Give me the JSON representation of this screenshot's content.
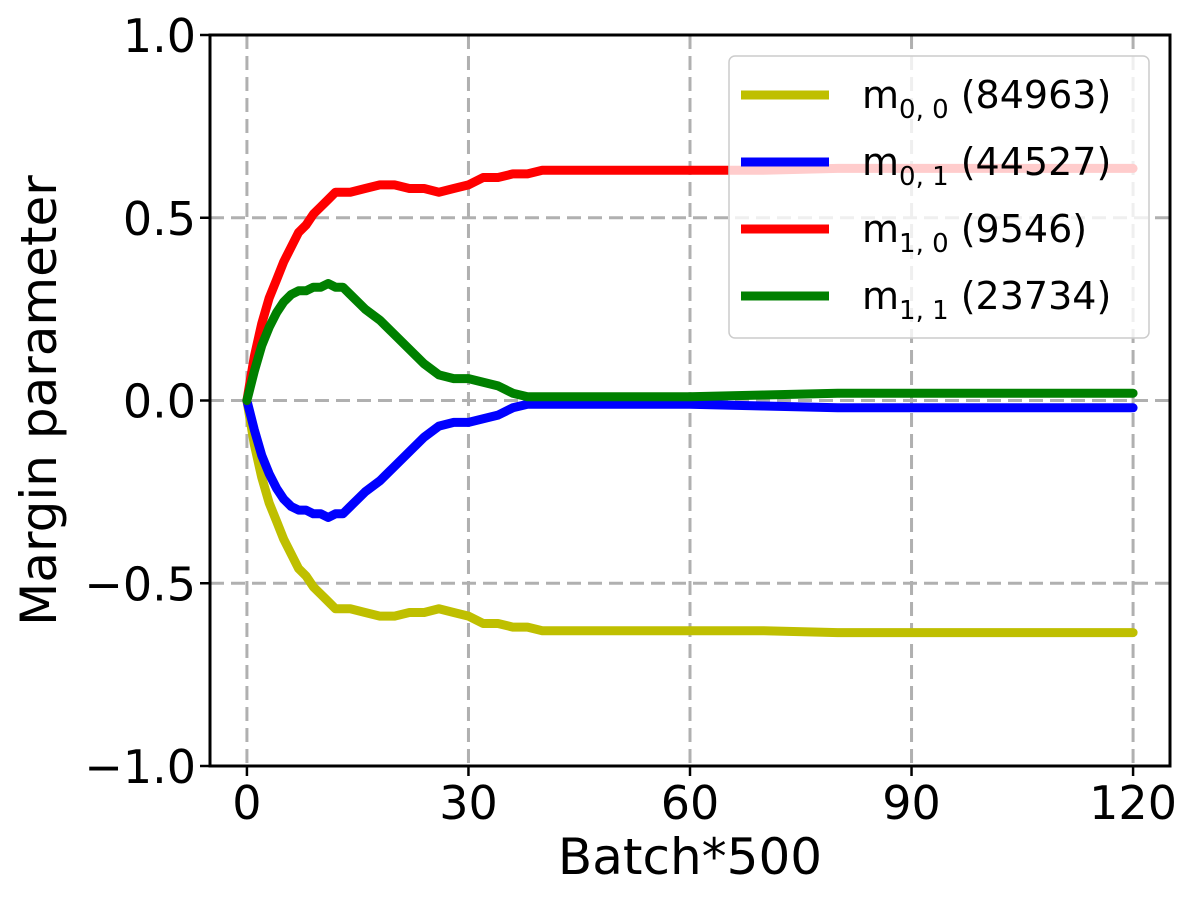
{
  "chart_data": {
    "type": "line",
    "xlabel": "Batch*500",
    "ylabel": "Margin parameter",
    "xlim": [
      -5,
      125
    ],
    "ylim": [
      -1.0,
      1.0
    ],
    "xticks": [
      0,
      30,
      60,
      90,
      120
    ],
    "yticks": [
      -1.0,
      -0.5,
      0.0,
      0.5,
      1.0
    ],
    "xtick_labels": [
      "0",
      "30",
      "60",
      "90",
      "120"
    ],
    "ytick_labels": [
      "−1.0",
      "−0.5",
      "0.0",
      "0.5",
      "1.0"
    ],
    "grid": true,
    "legend_position": "top-right",
    "series": [
      {
        "name": "m0,0 (84963)",
        "label_main": "m",
        "label_sub": "0, 0",
        "label_count": " (84963)",
        "color": "#bfbf00",
        "x": [
          0,
          1,
          2,
          3,
          4,
          5,
          6,
          7,
          8,
          9,
          10,
          11,
          12,
          13,
          14,
          16,
          18,
          20,
          22,
          24,
          26,
          28,
          30,
          32,
          34,
          36,
          38,
          40,
          50,
          60,
          70,
          80,
          90,
          100,
          110,
          120
        ],
        "y": [
          0,
          -0.12,
          -0.21,
          -0.28,
          -0.33,
          -0.38,
          -0.42,
          -0.46,
          -0.48,
          -0.51,
          -0.53,
          -0.55,
          -0.57,
          -0.57,
          -0.57,
          -0.58,
          -0.59,
          -0.59,
          -0.58,
          -0.58,
          -0.57,
          -0.58,
          -0.59,
          -0.61,
          -0.61,
          -0.62,
          -0.62,
          -0.63,
          -0.63,
          -0.63,
          -0.63,
          -0.635,
          -0.635,
          -0.635,
          -0.635,
          -0.635
        ]
      },
      {
        "name": "m0,1 (44527)",
        "label_main": "m",
        "label_sub": "0, 1",
        "label_count": " (44527)",
        "color": "#0000ff",
        "x": [
          0,
          1,
          2,
          3,
          4,
          5,
          6,
          7,
          8,
          9,
          10,
          11,
          12,
          13,
          14,
          16,
          18,
          20,
          22,
          24,
          26,
          28,
          30,
          32,
          34,
          36,
          38,
          40,
          50,
          60,
          70,
          80,
          90,
          100,
          110,
          120
        ],
        "y": [
          0,
          -0.08,
          -0.15,
          -0.2,
          -0.24,
          -0.27,
          -0.29,
          -0.3,
          -0.3,
          -0.31,
          -0.31,
          -0.32,
          -0.31,
          -0.31,
          -0.29,
          -0.25,
          -0.22,
          -0.18,
          -0.14,
          -0.1,
          -0.07,
          -0.06,
          -0.06,
          -0.05,
          -0.04,
          -0.02,
          -0.01,
          -0.01,
          -0.01,
          -0.01,
          -0.015,
          -0.02,
          -0.02,
          -0.02,
          -0.02,
          -0.02
        ]
      },
      {
        "name": "m1,0 (9546)",
        "label_main": "m",
        "label_sub": "1, 0",
        "label_count": " (9546)",
        "color": "#ff0000",
        "x": [
          0,
          1,
          2,
          3,
          4,
          5,
          6,
          7,
          8,
          9,
          10,
          11,
          12,
          13,
          14,
          16,
          18,
          20,
          22,
          24,
          26,
          28,
          30,
          32,
          34,
          36,
          38,
          40,
          50,
          60,
          70,
          80,
          90,
          100,
          110,
          120
        ],
        "y": [
          0,
          0.12,
          0.21,
          0.28,
          0.33,
          0.38,
          0.42,
          0.46,
          0.48,
          0.51,
          0.53,
          0.55,
          0.57,
          0.57,
          0.57,
          0.58,
          0.59,
          0.59,
          0.58,
          0.58,
          0.57,
          0.58,
          0.59,
          0.61,
          0.61,
          0.62,
          0.62,
          0.63,
          0.63,
          0.63,
          0.63,
          0.635,
          0.635,
          0.635,
          0.635,
          0.635
        ]
      },
      {
        "name": "m1,1 (23734)",
        "label_main": "m",
        "label_sub": "1, 1",
        "label_count": " (23734)",
        "color": "#008000",
        "x": [
          0,
          1,
          2,
          3,
          4,
          5,
          6,
          7,
          8,
          9,
          10,
          11,
          12,
          13,
          14,
          16,
          18,
          20,
          22,
          24,
          26,
          28,
          30,
          32,
          34,
          36,
          38,
          40,
          50,
          60,
          70,
          80,
          90,
          100,
          110,
          120
        ],
        "y": [
          0,
          0.08,
          0.15,
          0.2,
          0.24,
          0.27,
          0.29,
          0.3,
          0.3,
          0.31,
          0.31,
          0.32,
          0.31,
          0.31,
          0.29,
          0.25,
          0.22,
          0.18,
          0.14,
          0.1,
          0.07,
          0.06,
          0.06,
          0.05,
          0.04,
          0.02,
          0.01,
          0.01,
          0.01,
          0.01,
          0.015,
          0.02,
          0.02,
          0.02,
          0.02,
          0.02
        ]
      }
    ]
  }
}
